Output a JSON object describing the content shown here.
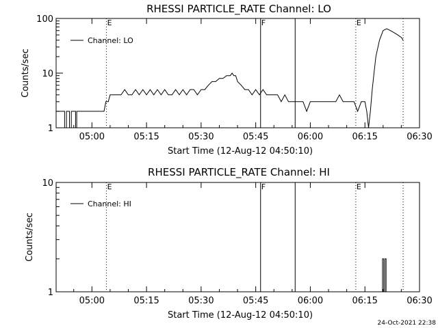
{
  "timestamp": "24-Oct-2021 22:38",
  "colors": {
    "foreground": "#000000",
    "background": "#ffffff"
  },
  "chart_data": [
    {
      "type": "line",
      "title": "RHESSI PARTICLE_RATE Channel: LO",
      "xlabel": "Start Time (12-Aug-12 04:50:10)",
      "ylabel": "Counts/sec",
      "yscale": "log",
      "ylim": [
        1,
        100
      ],
      "xlim": [
        "04:50:10",
        "06:30:00"
      ],
      "x_ticks": [
        "05:00",
        "05:15",
        "05:30",
        "05:45",
        "06:00",
        "06:15",
        "06:30"
      ],
      "y_ticks": [
        "1",
        "10",
        "100"
      ],
      "legend": {
        "entries": [
          "Channel: LO"
        ],
        "placement": "top-left",
        "line_style": "solid"
      },
      "grid": false,
      "markers": [
        {
          "time": "05:04:00",
          "style": "dotted",
          "label": "E"
        },
        {
          "time": "05:46:20",
          "style": "solid",
          "label": "F"
        },
        {
          "time": "05:55:50",
          "style": "solid",
          "label": ""
        },
        {
          "time": "06:12:30",
          "style": "dotted",
          "label": "E"
        },
        {
          "time": "06:25:30",
          "style": "dotted",
          "label": ""
        }
      ],
      "series": [
        {
          "name": "Channel: LO",
          "x": [
            "04:50:10",
            "04:52:30",
            "04:52:30",
            "04:53:00",
            "04:53:00",
            "04:53:50",
            "04:53:50",
            "04:54:20",
            "04:54:20",
            "04:55:30",
            "04:55:30",
            "04:55:50",
            "04:55:50",
            "04:57:20",
            "04:57:20",
            "05:03:20",
            "05:03:50",
            "05:04:30",
            "05:05:00",
            "05:08:00",
            "05:09:00",
            "05:10:00",
            "05:11:00",
            "05:12:00",
            "05:13:00",
            "05:14:00",
            "05:15:00",
            "05:16:00",
            "05:17:00",
            "05:18:00",
            "05:19:00",
            "05:20:00",
            "05:21:00",
            "05:22:00",
            "05:23:00",
            "05:24:00",
            "05:25:00",
            "05:26:00",
            "05:27:00",
            "05:28:00",
            "05:29:00",
            "05:30:00",
            "05:31:00",
            "05:32:00",
            "05:33:00",
            "05:34:00",
            "05:35:00",
            "05:36:00",
            "05:37:00",
            "05:38:00",
            "05:38:30",
            "05:39:00",
            "05:39:30",
            "05:40:00",
            "05:41:00",
            "05:42:00",
            "05:43:00",
            "05:44:00",
            "05:45:00",
            "05:46:00",
            "05:47:00",
            "05:48:00",
            "05:49:00",
            "05:50:00",
            "05:51:00",
            "05:52:00",
            "05:53:00",
            "05:54:00",
            "05:55:00",
            "05:56:00",
            "05:57:00",
            "05:58:00",
            "05:59:00",
            "06:00:00",
            "06:01:00",
            "06:02:00",
            "06:03:00",
            "06:04:00",
            "06:05:00",
            "06:06:00",
            "06:07:00",
            "06:08:00",
            "06:09:00",
            "06:10:00",
            "06:11:00",
            "06:12:00",
            "06:13:00",
            "06:14:00",
            "06:15:00",
            "06:15:30",
            "06:16:00",
            "06:16:30",
            "06:17:00",
            "06:17:30",
            "06:18:00",
            "06:19:00",
            "06:20:00",
            "06:21:00",
            "06:22:00",
            "06:23:00",
            "06:24:00",
            "06:25:00",
            "06:25:30"
          ],
          "values": [
            2,
            2,
            1,
            1,
            2,
            2,
            1,
            1,
            2,
            2,
            1,
            1,
            2,
            2,
            2,
            2,
            3,
            3,
            4,
            4,
            5,
            4,
            4,
            5,
            4,
            5,
            4,
            5,
            4,
            5,
            4,
            5,
            4,
            4,
            5,
            4,
            5,
            4,
            5,
            5,
            4,
            5,
            5,
            6,
            7,
            7,
            8,
            8,
            9,
            9,
            10,
            9,
            9,
            7,
            6,
            5,
            5,
            4,
            5,
            4,
            5,
            4,
            4,
            4,
            4,
            3,
            4,
            3,
            3,
            3,
            3,
            3,
            2,
            3,
            3,
            3,
            3,
            3,
            3,
            3,
            3,
            4,
            3,
            3,
            3,
            3,
            2,
            3,
            3,
            2,
            1,
            2,
            5,
            10,
            20,
            40,
            60,
            65,
            60,
            55,
            50,
            45,
            40
          ]
        }
      ]
    },
    {
      "type": "line",
      "title": "RHESSI PARTICLE_RATE Channel: HI",
      "xlabel": "Start Time (12-Aug-12 04:50:10)",
      "ylabel": "Counts/sec",
      "yscale": "log",
      "ylim": [
        1,
        10
      ],
      "xlim": [
        "04:50:10",
        "06:30:00"
      ],
      "x_ticks": [
        "05:00",
        "05:15",
        "05:30",
        "05:45",
        "06:00",
        "06:15",
        "06:30"
      ],
      "y_ticks": [
        "1",
        "10"
      ],
      "legend": {
        "entries": [
          "Channel: HI"
        ],
        "placement": "top-left",
        "line_style": "solid"
      },
      "grid": false,
      "markers": [
        {
          "time": "05:04:00",
          "style": "dotted",
          "label": "E"
        },
        {
          "time": "05:46:20",
          "style": "solid",
          "label": "F"
        },
        {
          "time": "05:55:50",
          "style": "solid",
          "label": ""
        },
        {
          "time": "06:12:30",
          "style": "dotted",
          "label": "E"
        },
        {
          "time": "06:25:30",
          "style": "dotted",
          "label": ""
        }
      ],
      "series": [
        {
          "name": "Channel: HI",
          "x": [
            "06:19:50",
            "06:19:50",
            "06:20:10",
            "06:20:10",
            "06:20:30",
            "06:20:30",
            "06:20:50",
            "06:20:50"
          ],
          "values": [
            1,
            2,
            2,
            1,
            1,
            2,
            2,
            1
          ]
        }
      ]
    }
  ]
}
